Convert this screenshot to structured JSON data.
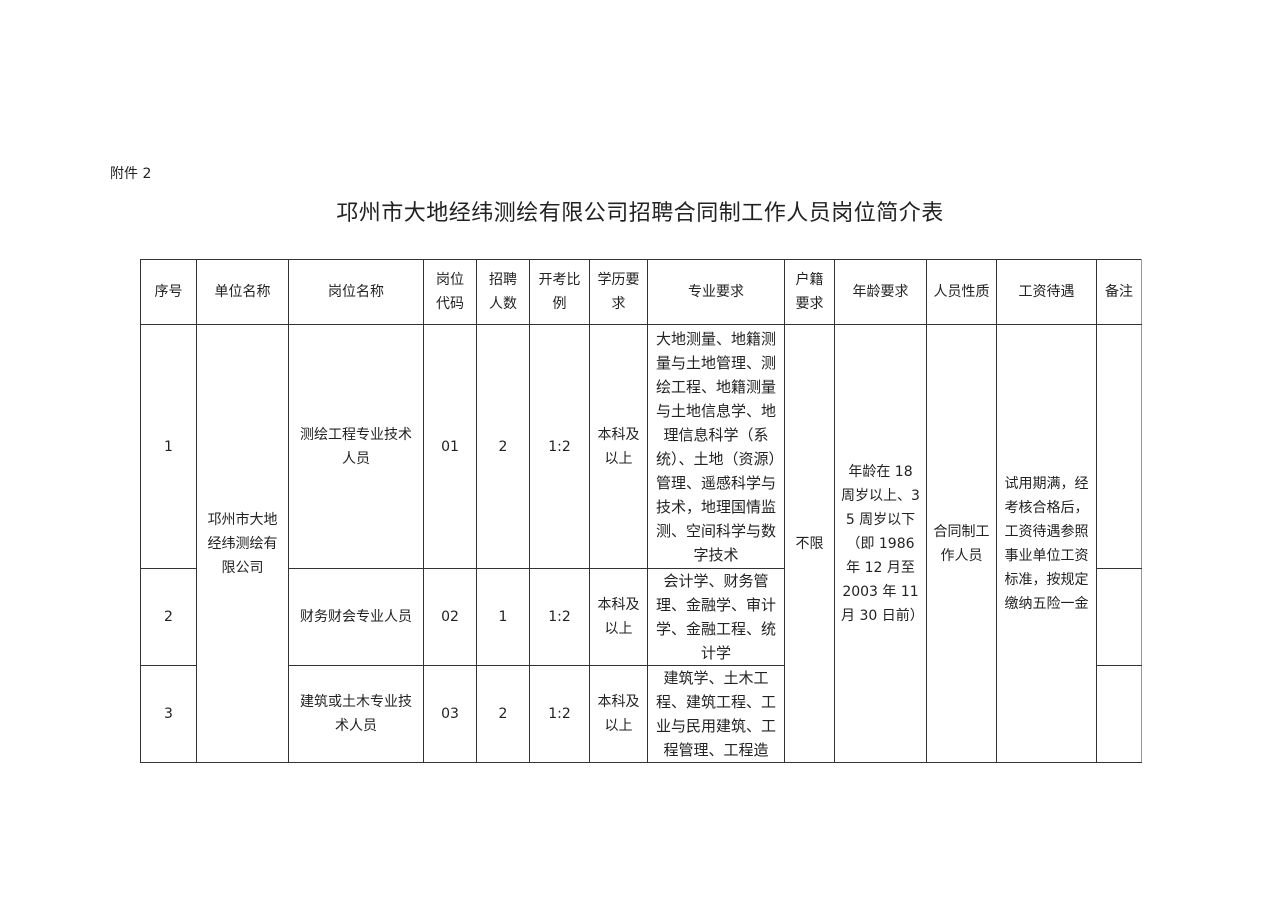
{
  "attachment_label": "附件 2",
  "title": "邛州市大地经纬测绘有限公司招聘合同制工作人员岗位简介表",
  "table": {
    "headers": [
      "序号",
      "单位名称",
      "岗位名称",
      "岗位代码",
      "招聘人数",
      "开考比例",
      "学历要求",
      "专业要求",
      "户籍要求",
      "年龄要求",
      "人员性质",
      "工资待遇",
      "备注"
    ],
    "unit_name": "邛州市大地经纬测绘有限公司",
    "household": "不限",
    "age": "年龄在 18 周岁以上、35 周岁以下（即 1986 年 12 月至 2003 年 11 月 30 日前）",
    "personnel_type": "合同制工作人员",
    "salary": "试用期满，经考核合格后，工资待遇参照事业单位工资标准，按规定缴纳五险一金",
    "rows": [
      {
        "no": "1",
        "post": "测绘工程专业技术人员",
        "code": "01",
        "count": "2",
        "ratio": "1:2",
        "education": "本科及以上",
        "major": "大地测量、地籍测量与土地管理、测绘工程、地籍测量与土地信息学、地理信息科学（系统）、土地（资源）管理、遥感科学与技术，地理国情监测、空间科学与数字技术",
        "note": ""
      },
      {
        "no": "2",
        "post": "财务财会专业人员",
        "code": "02",
        "count": "1",
        "ratio": "1:2",
        "education": "本科及以上",
        "major": "会计学、财务管理、金融学、审计学、金融工程、统计学",
        "note": ""
      },
      {
        "no": "3",
        "post": "建筑或土木专业技术人员",
        "code": "03",
        "count": "2",
        "ratio": "1:2",
        "education": "本科及以上",
        "major": "建筑学、土木工程、建筑工程、工业与民用建筑、工程管理、工程造",
        "note": ""
      }
    ]
  }
}
